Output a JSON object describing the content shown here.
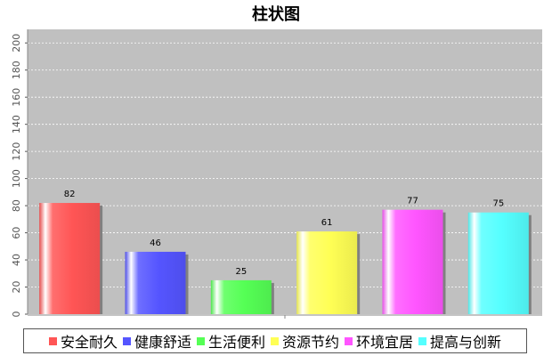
{
  "chart_data": {
    "type": "bar",
    "title": "柱状图",
    "categories": [
      "安全耐久",
      "健康舒适",
      "生活便利",
      "资源节约",
      "环境宜居",
      "提高与创新"
    ],
    "values": [
      82,
      46,
      25,
      61,
      77,
      75
    ],
    "colors": [
      "#ff5555",
      "#5555ff",
      "#55ff55",
      "#ffff55",
      "#ff55ff",
      "#55ffff"
    ],
    "ylim": [
      0,
      210
    ],
    "yticks": [
      0,
      20,
      40,
      60,
      80,
      100,
      120,
      140,
      160,
      180,
      200
    ],
    "grid": true,
    "legend_position": "bottom",
    "plot_background": "#c0c0c0"
  }
}
